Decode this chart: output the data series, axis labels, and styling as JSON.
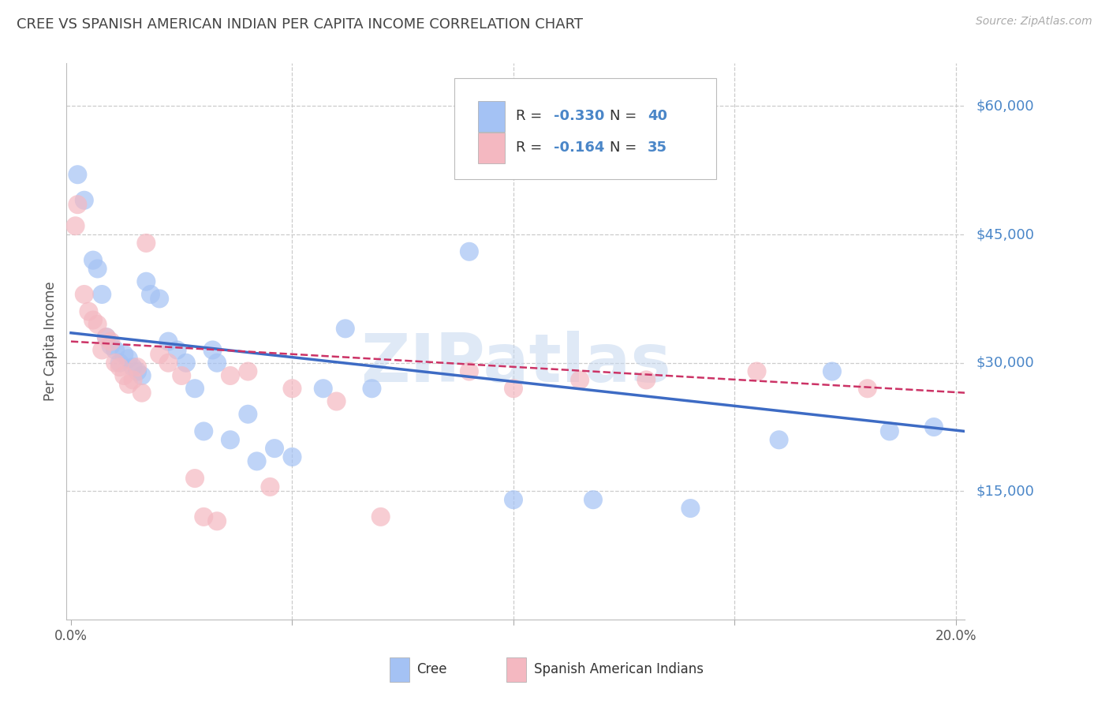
{
  "title": "CREE VS SPANISH AMERICAN INDIAN PER CAPITA INCOME CORRELATION CHART",
  "source": "Source: ZipAtlas.com",
  "ylabel": "Per Capita Income",
  "watermark": "ZIPatlas",
  "yticks": [
    0,
    15000,
    30000,
    45000,
    60000
  ],
  "ytick_labels": [
    "",
    "$15,000",
    "$30,000",
    "$45,000",
    "$60,000"
  ],
  "legend_cree_r": "R = -0.330",
  "legend_cree_n": "N = 40",
  "legend_sai_r": "R = -0.164",
  "legend_sai_n": "N = 35",
  "cree_color": "#a4c2f4",
  "sai_color": "#f4b8c1",
  "cree_line_color": "#3d6bc4",
  "sai_line_color": "#cc3366",
  "background_color": "#ffffff",
  "grid_color": "#cccccc",
  "ytick_label_color": "#4a86c8",
  "title_color": "#444444",
  "text_blue": "#4a86c8",
  "cree_points": [
    [
      0.0015,
      52000
    ],
    [
      0.003,
      49000
    ],
    [
      0.005,
      42000
    ],
    [
      0.006,
      41000
    ],
    [
      0.007,
      38000
    ],
    [
      0.008,
      33000
    ],
    [
      0.009,
      32000
    ],
    [
      0.01,
      31500
    ],
    [
      0.011,
      30000
    ],
    [
      0.012,
      31000
    ],
    [
      0.013,
      30500
    ],
    [
      0.014,
      29500
    ],
    [
      0.015,
      29000
    ],
    [
      0.016,
      28500
    ],
    [
      0.017,
      39500
    ],
    [
      0.018,
      38000
    ],
    [
      0.02,
      37500
    ],
    [
      0.022,
      32500
    ],
    [
      0.024,
      31500
    ],
    [
      0.026,
      30000
    ],
    [
      0.028,
      27000
    ],
    [
      0.03,
      22000
    ],
    [
      0.032,
      31500
    ],
    [
      0.033,
      30000
    ],
    [
      0.036,
      21000
    ],
    [
      0.04,
      24000
    ],
    [
      0.042,
      18500
    ],
    [
      0.046,
      20000
    ],
    [
      0.05,
      19000
    ],
    [
      0.057,
      27000
    ],
    [
      0.062,
      34000
    ],
    [
      0.068,
      27000
    ],
    [
      0.09,
      43000
    ],
    [
      0.1,
      14000
    ],
    [
      0.118,
      14000
    ],
    [
      0.14,
      13000
    ],
    [
      0.16,
      21000
    ],
    [
      0.172,
      29000
    ],
    [
      0.185,
      22000
    ],
    [
      0.195,
      22500
    ]
  ],
  "sai_points": [
    [
      0.001,
      46000
    ],
    [
      0.0015,
      48500
    ],
    [
      0.003,
      38000
    ],
    [
      0.004,
      36000
    ],
    [
      0.005,
      35000
    ],
    [
      0.006,
      34500
    ],
    [
      0.007,
      31500
    ],
    [
      0.008,
      33000
    ],
    [
      0.009,
      32500
    ],
    [
      0.01,
      30000
    ],
    [
      0.011,
      29500
    ],
    [
      0.012,
      28500
    ],
    [
      0.013,
      27500
    ],
    [
      0.014,
      28000
    ],
    [
      0.015,
      29500
    ],
    [
      0.016,
      26500
    ],
    [
      0.017,
      44000
    ],
    [
      0.02,
      31000
    ],
    [
      0.022,
      30000
    ],
    [
      0.025,
      28500
    ],
    [
      0.028,
      16500
    ],
    [
      0.03,
      12000
    ],
    [
      0.033,
      11500
    ],
    [
      0.036,
      28500
    ],
    [
      0.04,
      29000
    ],
    [
      0.045,
      15500
    ],
    [
      0.05,
      27000
    ],
    [
      0.06,
      25500
    ],
    [
      0.07,
      12000
    ],
    [
      0.09,
      29000
    ],
    [
      0.1,
      27000
    ],
    [
      0.115,
      28000
    ],
    [
      0.13,
      28000
    ],
    [
      0.155,
      29000
    ],
    [
      0.18,
      27000
    ]
  ],
  "xmin": -0.001,
  "xmax": 0.202,
  "ymin": 0,
  "ymax": 65000,
  "cree_trend_x": [
    0.0,
    0.202
  ],
  "cree_trend_y": [
    33500,
    22000
  ],
  "sai_trend_x": [
    0.0,
    0.202
  ],
  "sai_trend_y": [
    32500,
    26500
  ]
}
